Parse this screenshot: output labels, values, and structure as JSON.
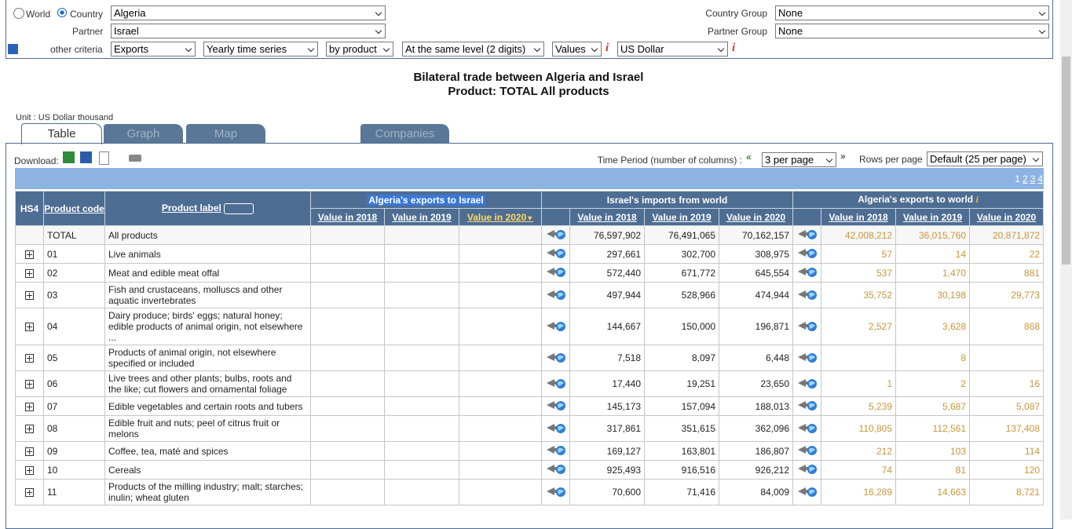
{
  "filters": {
    "world": "World",
    "country": "Country",
    "country_value": "Algeria",
    "partner_label": "Partner",
    "partner_value": "Israel",
    "other_label": "other criteria",
    "criteria": [
      "Exports",
      "Yearly time series",
      "by product",
      "At the same level (2 digits)",
      "Values",
      "US Dollar"
    ],
    "country_group_label": "Country Group",
    "country_group_value": "None",
    "partner_group_label": "Partner Group",
    "partner_group_value": "None"
  },
  "title": [
    "Bilateral trade between Algeria and Israel",
    "Product: TOTAL All products"
  ],
  "unit": "Unit : US Dollar thousand",
  "tabs": [
    "Table",
    "Graph",
    "Map",
    "Companies"
  ],
  "toolbar": {
    "download": "Download:",
    "time_period_label": "Time Period (number of columns) :",
    "time_period_value": "3 per page",
    "rows_label": "Rows per page",
    "rows_value": "Default (25 per page)",
    "pages": [
      "1",
      "2",
      "3",
      "4"
    ]
  },
  "table": {
    "columns": [
      "HS4",
      "Product code",
      "Product label"
    ],
    "groups": [
      "Algeria's exports to Israel",
      "Israel's imports from world",
      "Algeria's exports to world"
    ],
    "years": [
      "Value in 2018",
      "Value in 2019",
      "Value in 2020"
    ],
    "rows": [
      [
        "TOTAL",
        "All products",
        null,
        null,
        null,
        "76,597,902",
        "76,491,065",
        "70,162,157",
        "42,008,212",
        "36,015,760",
        "20,871,872"
      ],
      [
        "01",
        "Live animals",
        null,
        null,
        null,
        "297,661",
        "302,700",
        "308,975",
        "57",
        "14",
        "22"
      ],
      [
        "02",
        "Meat and edible meat offal",
        null,
        null,
        null,
        "572,440",
        "671,772",
        "645,554",
        "537",
        "1,470",
        "881"
      ],
      [
        "03",
        "Fish and crustaceans, molluscs and other aquatic invertebrates",
        null,
        null,
        null,
        "497,944",
        "528,966",
        "474,944",
        "35,752",
        "30,198",
        "29,773"
      ],
      [
        "04",
        "Dairy produce; birds' eggs; natural honey; edible products of animal origin, not elsewhere ...",
        null,
        null,
        null,
        "144,667",
        "150,000",
        "196,871",
        "2,527",
        "3,628",
        "868"
      ],
      [
        "05",
        "Products of animal origin, not elsewhere specified or included",
        null,
        null,
        null,
        "7,518",
        "8,097",
        "6,448",
        null,
        "8",
        null
      ],
      [
        "06",
        "Live trees and other plants; bulbs, roots and the like; cut flowers and ornamental foliage",
        null,
        null,
        null,
        "17,440",
        "19,251",
        "23,650",
        "1",
        "2",
        "16"
      ],
      [
        "07",
        "Edible vegetables and certain roots and tubers",
        null,
        null,
        null,
        "145,173",
        "157,094",
        "188,013",
        "5,239",
        "5,687",
        "5,087"
      ],
      [
        "08",
        "Edible fruit and nuts; peel of citrus fruit or melons",
        null,
        null,
        null,
        "317,861",
        "351,615",
        "362,096",
        "110,805",
        "112,561",
        "137,408"
      ],
      [
        "09",
        "Coffee, tea, maté and spices",
        null,
        null,
        null,
        "169,127",
        "163,801",
        "186,807",
        "212",
        "103",
        "114"
      ],
      [
        "10",
        "Cereals",
        null,
        null,
        null,
        "925,493",
        "916,516",
        "926,212",
        "74",
        "81",
        "120"
      ],
      [
        "11",
        "Products of the milling industry; malt; starches; inulin; wheat gluten",
        null,
        null,
        null,
        "70,600",
        "71,416",
        "84,009",
        "16,289",
        "14,663",
        "8,721"
      ]
    ]
  }
}
